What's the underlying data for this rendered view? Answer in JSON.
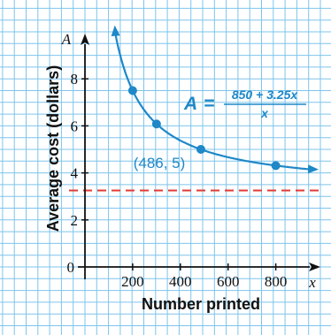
{
  "chart_data": {
    "type": "line",
    "title": "",
    "xlabel": "Number printed",
    "ylabel": "Average cost (dollars)",
    "x_axis_variable": "x",
    "y_axis_variable": "A",
    "xlim": [
      0,
      950
    ],
    "ylim": [
      0,
      10
    ],
    "x_ticks": [
      0,
      200,
      400,
      600,
      800
    ],
    "y_ticks": [
      2,
      4,
      6,
      8
    ],
    "x_tick_labels": [
      "0",
      "200",
      "400",
      "600",
      "800"
    ],
    "y_tick_labels": [
      "2",
      "4",
      "6",
      "8"
    ],
    "origin_label": "0",
    "grid": true,
    "equation": {
      "lhs": "A",
      "equals": "=",
      "numerator": "850 + 3.25x",
      "denominator": "x"
    },
    "function": {
      "fixed_cost": 850,
      "unit_cost": 3.25,
      "x_start": 125,
      "x_end": 950
    },
    "points": [
      {
        "x": 200,
        "y": 7.5
      },
      {
        "x": 300,
        "y": 6.08
      },
      {
        "x": 486,
        "y": 5
      },
      {
        "x": 800,
        "y": 4.31
      }
    ],
    "annotated_point": {
      "x": 486,
      "y": 5,
      "label": "(486, 5)"
    },
    "asymptote": {
      "y": 3.25,
      "style": "dashed"
    },
    "colors": {
      "grid": "#7ec4ec",
      "curve": "#1f88c8",
      "asymptote": "#e23b33",
      "equation": "#1f88c8",
      "axes": "#111111"
    }
  }
}
